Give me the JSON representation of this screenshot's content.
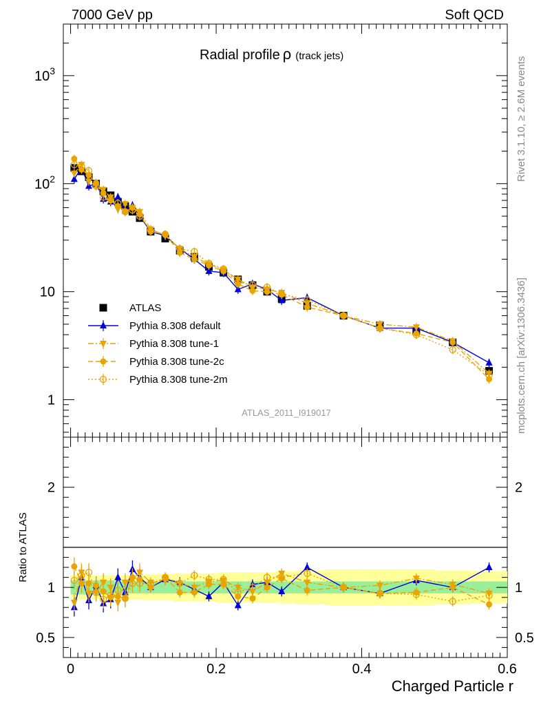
{
  "header": {
    "left": "7000 GeV pp",
    "right": "Soft QCD"
  },
  "side_labels": {
    "rivet": "Rivet 3.1.10, ≥ 2.6M events",
    "mcplots": "mcplots.cern.ch [arXiv:1306.3436]"
  },
  "chart_data": [
    {
      "type": "line",
      "panel": "main",
      "title": "Radial profile",
      "title_symbol": "ρ",
      "title_suffix": "(track jets)",
      "watermark": "ATLAS_2011_I919017",
      "xlabel": "Charged Particle r",
      "ylabel": "",
      "xlim": [
        -0.01,
        0.6
      ],
      "ylim": [
        0.45,
        3000
      ],
      "yscale": "log",
      "x_ticks": [
        "0",
        "0.2",
        "0.4",
        "0.6"
      ],
      "y_ticks": [
        "1",
        "10",
        "10^2",
        "10^3"
      ],
      "legend_position": "center-left",
      "x": [
        0.005,
        0.015,
        0.025,
        0.035,
        0.045,
        0.055,
        0.065,
        0.075,
        0.085,
        0.095,
        0.11,
        0.13,
        0.15,
        0.17,
        0.19,
        0.21,
        0.23,
        0.25,
        0.27,
        0.29,
        0.325,
        0.375,
        0.425,
        0.475,
        0.525,
        0.575
      ],
      "series": [
        {
          "name": "ATLAS",
          "style": "data",
          "color": "#000000",
          "values": [
            140,
            130,
            115,
            100,
            85,
            78,
            68,
            62,
            55,
            48,
            36,
            31,
            24,
            21,
            17,
            15,
            13,
            11.5,
            10,
            8.6,
            7.4,
            6.0,
            4.9,
            4.3,
            3.4,
            1.85
          ]
        },
        {
          "name": "Pythia 8.308 default",
          "style": "solid",
          "marker": "triangle-up",
          "color": "#0000dd",
          "values": [
            110,
            140,
            95,
            100,
            72,
            68,
            75,
            56,
            63,
            50,
            36,
            33,
            25,
            20,
            15.5,
            15,
            10.5,
            11.8,
            10.5,
            8.3,
            8.8,
            6.0,
            4.6,
            4.6,
            3.4,
            2.2
          ]
        },
        {
          "name": "Pythia 8.308 tune-1",
          "style": "dashdot",
          "marker": "triangle-down",
          "color": "#e8a400",
          "values": [
            125,
            150,
            105,
            95,
            88,
            75,
            58,
            65,
            60,
            55,
            38,
            33,
            25,
            21,
            18,
            16,
            13,
            11,
            10.5,
            9.8,
            7.8,
            6.0,
            5.0,
            4.7,
            3.5,
            1.75
          ]
        },
        {
          "name": "Pythia 8.308 tune-2c",
          "style": "dashed",
          "marker": "circle",
          "color": "#e8a400",
          "values": [
            170,
            135,
            120,
            102,
            82,
            70,
            62,
            55,
            60,
            52,
            36,
            34,
            23,
            20,
            17.5,
            15.5,
            11.8,
            10.2,
            10,
            9.4,
            7.2,
            6.0,
            4.6,
            4.1,
            3.4,
            1.55
          ]
        },
        {
          "name": "Pythia 8.308 tune-2m",
          "style": "dotted",
          "marker": "circle-open",
          "color": "#e8a400",
          "values": [
            150,
            145,
            132,
            95,
            75,
            72,
            66,
            55,
            57,
            50,
            37,
            34,
            25,
            23.5,
            18.3,
            16.2,
            12.3,
            11.5,
            11,
            9.5,
            8.4,
            6.0,
            4.6,
            4.0,
            2.9,
            1.7
          ]
        }
      ]
    },
    {
      "type": "line",
      "panel": "ratio",
      "title": "",
      "xlabel": "Charged Particle r",
      "ylabel": "Ratio to ATLAS",
      "xlim": [
        -0.01,
        0.6
      ],
      "ylim": [
        0.3,
        2.5
      ],
      "y_ticks": [
        "0.5",
        "1",
        "2"
      ],
      "x": [
        0.005,
        0.015,
        0.025,
        0.035,
        0.045,
        0.055,
        0.065,
        0.075,
        0.085,
        0.095,
        0.11,
        0.13,
        0.15,
        0.17,
        0.19,
        0.21,
        0.23,
        0.25,
        0.27,
        0.29,
        0.325,
        0.375,
        0.425,
        0.475,
        0.525,
        0.575
      ],
      "band_inner_halfwidth": [
        0.07,
        0.07,
        0.07,
        0.07,
        0.07,
        0.07,
        0.06,
        0.06,
        0.06,
        0.06,
        0.06,
        0.06,
        0.06,
        0.06,
        0.06,
        0.06,
        0.06,
        0.06,
        0.06,
        0.06,
        0.06,
        0.06,
        0.06,
        0.06,
        0.06,
        0.06
      ],
      "band_outer_halfwidth": [
        0.12,
        0.12,
        0.12,
        0.12,
        0.12,
        0.12,
        0.12,
        0.12,
        0.12,
        0.12,
        0.13,
        0.13,
        0.14,
        0.14,
        0.14,
        0.15,
        0.15,
        0.15,
        0.15,
        0.16,
        0.17,
        0.18,
        0.18,
        0.18,
        0.17,
        0.16
      ],
      "series": [
        {
          "name": "Pythia 8.308 default",
          "style": "solid",
          "marker": "triangle-up",
          "color": "#0000dd",
          "values": [
            0.8,
            1.1,
            0.87,
            1.02,
            0.84,
            0.88,
            1.1,
            0.95,
            1.18,
            1.1,
            1.0,
            1.08,
            1.05,
            0.98,
            0.91,
            1.05,
            0.82,
            1.03,
            1.05,
            0.96,
            1.2,
            1.0,
            0.94,
            1.07,
            1.0,
            1.2
          ]
        },
        {
          "name": "Pythia 8.308 tune-1",
          "style": "dashdot",
          "marker": "triangle-down",
          "color": "#e8a400",
          "values": [
            0.85,
            1.15,
            0.94,
            0.95,
            1.05,
            1.0,
            0.85,
            1.05,
            1.08,
            1.15,
            1.05,
            1.07,
            1.04,
            1.0,
            1.06,
            1.07,
            1.0,
            0.96,
            1.05,
            1.14,
            1.05,
            1.0,
            1.02,
            1.09,
            1.03,
            0.94
          ]
        },
        {
          "name": "Pythia 8.308 tune-2c",
          "style": "dashed",
          "marker": "circle",
          "color": "#e8a400",
          "values": [
            1.21,
            1.04,
            1.04,
            1.02,
            0.96,
            0.9,
            0.91,
            0.89,
            1.1,
            1.08,
            1.0,
            1.1,
            0.95,
            0.95,
            1.03,
            1.03,
            0.91,
            0.89,
            1.0,
            1.09,
            0.97,
            1.0,
            0.94,
            0.95,
            1.0,
            0.83
          ]
        },
        {
          "name": "Pythia 8.308 tune-2m",
          "style": "dotted",
          "marker": "circle-open",
          "color": "#e8a400",
          "values": [
            1.07,
            1.12,
            1.15,
            0.95,
            0.88,
            0.92,
            0.97,
            0.89,
            1.04,
            1.04,
            1.03,
            1.1,
            1.04,
            1.12,
            1.08,
            1.08,
            0.95,
            1.0,
            1.1,
            1.1,
            1.14,
            1.0,
            0.94,
            0.93,
            0.86,
            0.92
          ]
        }
      ]
    }
  ]
}
